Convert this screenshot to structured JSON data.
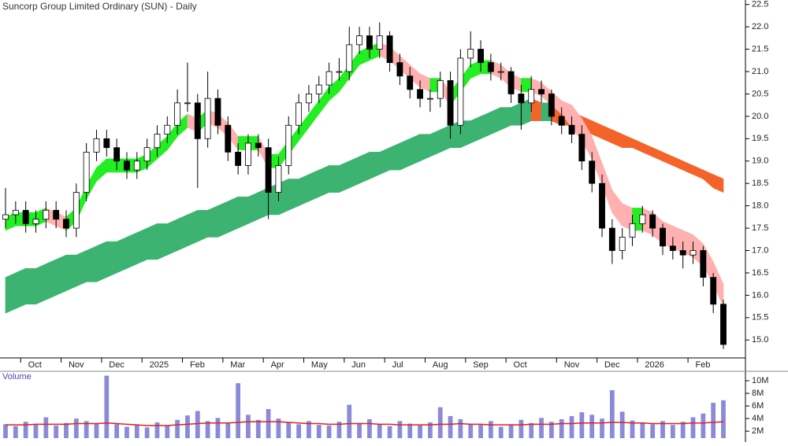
{
  "chart_data": [
    {
      "type": "candlestick",
      "title": "Suncorp Group Limited Ordinary (SUN) - Daily",
      "categories": [
        null,
        null,
        "Oct",
        null,
        null,
        null,
        "Nov",
        null,
        null,
        null,
        "Dec",
        null,
        null,
        null,
        "2025",
        null,
        null,
        null,
        "Feb",
        null,
        null,
        null,
        "Mar",
        null,
        null,
        null,
        "Apr",
        null,
        null,
        null,
        "May",
        null,
        null,
        null,
        "Jun",
        null,
        null,
        null,
        "Jul",
        null,
        null,
        null,
        "Aug",
        null,
        null,
        null,
        "Sep",
        null,
        null,
        null,
        "Oct",
        null,
        null,
        null,
        null,
        "Nov",
        null,
        null,
        null,
        "Dec",
        null,
        null,
        null,
        "2026",
        null,
        null,
        null,
        null,
        "Feb",
        null,
        null,
        null
      ],
      "open": [
        17.7,
        17.8,
        17.9,
        17.6,
        17.7,
        17.9,
        17.7,
        17.5,
        18.3,
        19.2,
        19.5,
        19.3,
        19.0,
        18.8,
        19.0,
        19.3,
        19.6,
        19.8,
        20.3,
        20.3,
        19.5,
        20.4,
        19.8,
        19.2,
        18.9,
        19.4,
        19.3,
        18.3,
        18.9,
        19.8,
        20.3,
        20.5,
        20.7,
        21.0,
        21.0,
        21.6,
        21.8,
        21.5,
        21.8,
        21.2,
        20.9,
        20.6,
        20.4,
        20.4,
        20.8,
        19.8,
        21.3,
        21.5,
        21.2,
        21.0,
        21.0,
        20.5,
        20.3,
        20.6,
        20.5,
        20.0,
        19.8,
        19.6,
        19.0,
        18.5,
        17.5,
        17.0,
        17.3,
        17.6,
        17.8,
        17.5,
        17.1,
        17.0,
        16.9,
        17.0,
        16.4,
        15.8
      ],
      "high": [
        18.4,
        18.1,
        18.1,
        17.9,
        18.1,
        18.1,
        17.9,
        18.5,
        19.4,
        19.7,
        19.7,
        19.5,
        19.2,
        19.2,
        19.5,
        19.8,
        20.0,
        20.6,
        21.2,
        20.5,
        21.0,
        20.6,
        20.0,
        19.4,
        19.6,
        19.6,
        19.5,
        19.1,
        20.0,
        20.5,
        20.7,
        20.9,
        21.2,
        21.3,
        22.0,
        22.0,
        22.0,
        22.1,
        21.9,
        21.4,
        21.1,
        20.8,
        20.6,
        21.0,
        21.0,
        21.5,
        21.9,
        21.7,
        21.4,
        21.2,
        21.1,
        20.7,
        20.9,
        20.8,
        20.6,
        20.2,
        20.0,
        19.8,
        19.2,
        18.7,
        17.7,
        17.5,
        17.8,
        18.0,
        17.9,
        17.6,
        17.3,
        17.2,
        17.2,
        17.1,
        16.5,
        15.9
      ],
      "low": [
        17.5,
        17.6,
        17.4,
        17.4,
        17.5,
        17.5,
        17.3,
        17.3,
        18.1,
        19.0,
        19.1,
        18.8,
        18.6,
        18.6,
        18.8,
        19.1,
        19.4,
        19.6,
        20.1,
        18.4,
        19.3,
        19.6,
        19.0,
        18.7,
        18.7,
        19.1,
        17.7,
        18.1,
        18.7,
        19.6,
        20.1,
        20.3,
        20.5,
        20.8,
        20.8,
        21.4,
        21.3,
        21.3,
        21.0,
        20.7,
        20.4,
        20.2,
        20.1,
        20.2,
        19.5,
        19.6,
        21.1,
        21.0,
        20.8,
        20.8,
        20.3,
        19.7,
        20.1,
        20.3,
        19.8,
        19.6,
        19.4,
        18.8,
        18.3,
        17.3,
        16.7,
        16.8,
        17.1,
        17.4,
        17.3,
        16.9,
        16.8,
        16.6,
        16.7,
        16.2,
        15.6,
        14.8
      ],
      "close": [
        17.8,
        17.9,
        17.6,
        17.7,
        17.9,
        17.7,
        17.5,
        18.3,
        19.2,
        19.5,
        19.3,
        19.0,
        18.8,
        19.0,
        19.3,
        19.6,
        19.8,
        20.3,
        20.3,
        19.5,
        20.4,
        19.8,
        19.2,
        18.9,
        19.4,
        19.3,
        18.3,
        18.9,
        19.8,
        20.3,
        20.5,
        20.7,
        21.0,
        21.0,
        21.6,
        21.8,
        21.5,
        21.8,
        21.2,
        20.9,
        20.6,
        20.4,
        20.4,
        20.8,
        19.8,
        21.3,
        21.5,
        21.2,
        21.0,
        21.0,
        20.5,
        20.3,
        20.6,
        20.5,
        20.0,
        19.8,
        19.6,
        19.0,
        18.5,
        17.5,
        17.0,
        17.3,
        17.6,
        17.8,
        17.5,
        17.1,
        17.0,
        16.9,
        17.0,
        16.4,
        15.8,
        14.9
      ],
      "bands": [
        {
          "upper": [
            16.4,
            16.5,
            16.6,
            16.6,
            16.7,
            16.8,
            16.9,
            16.9,
            17.0,
            17.1,
            17.2,
            17.2,
            17.3,
            17.4,
            17.5,
            17.6,
            17.6,
            17.7,
            17.8,
            17.9,
            17.9,
            18.0,
            18.1,
            18.2,
            18.2,
            18.3,
            18.4,
            18.5,
            18.6,
            18.6,
            18.7,
            18.8,
            18.9,
            18.9,
            19.0,
            19.1,
            19.2,
            19.2,
            19.3,
            19.4,
            19.5,
            19.6,
            19.6,
            19.7,
            19.8,
            19.9,
            19.9,
            20.0,
            20.1,
            20.2,
            20.2,
            20.3,
            20.4,
            20.3,
            20.3,
            20.2,
            20.1,
            20.0,
            19.9,
            19.8,
            19.7,
            19.6,
            19.5,
            19.4,
            19.3,
            19.2,
            19.1,
            19.0,
            18.9,
            18.8,
            18.7,
            18.6
          ],
          "lower": [
            15.6,
            15.7,
            15.8,
            15.8,
            15.9,
            16.0,
            16.1,
            16.2,
            16.3,
            16.3,
            16.4,
            16.5,
            16.6,
            16.7,
            16.8,
            16.8,
            16.9,
            17.0,
            17.1,
            17.2,
            17.3,
            17.3,
            17.4,
            17.5,
            17.6,
            17.7,
            17.8,
            17.8,
            17.9,
            18.0,
            18.1,
            18.2,
            18.3,
            18.3,
            18.4,
            18.5,
            18.6,
            18.7,
            18.8,
            18.8,
            18.9,
            19.0,
            19.1,
            19.2,
            19.3,
            19.3,
            19.4,
            19.5,
            19.6,
            19.7,
            19.8,
            19.8,
            19.9,
            19.9,
            19.9,
            19.8,
            19.8,
            19.7,
            19.6,
            19.5,
            19.4,
            19.3,
            19.3,
            19.2,
            19.1,
            19.0,
            18.9,
            18.8,
            18.7,
            18.6,
            18.4,
            18.3
          ],
          "up_color": "#3cb371",
          "down_color": "#f4642a"
        },
        {
          "upper": [
            17.75,
            17.85,
            17.85,
            17.85,
            17.95,
            17.85,
            17.75,
            17.95,
            18.45,
            18.85,
            19.05,
            19.05,
            19.05,
            19.05,
            19.15,
            19.35,
            19.55,
            19.85,
            20.05,
            19.95,
            20.15,
            20.05,
            19.85,
            19.55,
            19.55,
            19.55,
            19.15,
            19.15,
            19.45,
            19.75,
            20.05,
            20.35,
            20.65,
            20.85,
            21.15,
            21.45,
            21.55,
            21.65,
            21.55,
            21.35,
            21.15,
            20.95,
            20.85,
            20.85,
            20.55,
            20.85,
            21.15,
            21.25,
            21.25,
            21.15,
            20.95,
            20.85,
            20.85,
            20.75,
            20.55,
            20.35,
            20.25,
            19.95,
            19.55,
            18.95,
            18.35,
            18.05,
            17.95,
            17.95,
            17.85,
            17.65,
            17.55,
            17.45,
            17.35,
            17.15,
            16.75,
            16.25
          ],
          "lower": [
            17.45,
            17.55,
            17.55,
            17.55,
            17.65,
            17.55,
            17.45,
            17.65,
            18.15,
            18.55,
            18.75,
            18.75,
            18.75,
            18.75,
            18.85,
            19.05,
            19.25,
            19.55,
            19.75,
            19.65,
            19.85,
            19.75,
            19.55,
            19.25,
            19.25,
            19.25,
            18.85,
            18.85,
            19.15,
            19.45,
            19.75,
            20.05,
            20.35,
            20.55,
            20.85,
            21.15,
            21.25,
            21.35,
            21.25,
            21.05,
            20.85,
            20.65,
            20.55,
            20.55,
            20.25,
            20.55,
            20.85,
            20.95,
            20.95,
            20.85,
            20.65,
            20.55,
            20.55,
            20.45,
            20.25,
            20.05,
            19.75,
            19.45,
            19.05,
            18.45,
            17.85,
            17.55,
            17.45,
            17.45,
            17.35,
            17.15,
            17.05,
            16.95,
            16.85,
            16.65,
            16.25,
            15.75
          ],
          "up_color": "#22ee22",
          "down_color": "#ffb0b0"
        }
      ],
      "up_body_color": "#ffffff",
      "down_body_color": "#000000",
      "wick_color": "#000000",
      "ylim": [
        14.6,
        22.6
      ],
      "yticks": [
        {
          "value": 15,
          "label": "15.0"
        },
        {
          "value": 15.5,
          "label": "15.5"
        },
        {
          "value": 16,
          "label": "16.0"
        },
        {
          "value": 16.5,
          "label": "16.5"
        },
        {
          "value": 17,
          "label": "17.0"
        },
        {
          "value": 17.5,
          "label": "17.5"
        },
        {
          "value": 18,
          "label": "18.0"
        },
        {
          "value": 18.5,
          "label": "18.5"
        },
        {
          "value": 19,
          "label": "19.0"
        },
        {
          "value": 19.5,
          "label": "19.5"
        },
        {
          "value": 20,
          "label": "20.0"
        },
        {
          "value": 20.5,
          "label": "20.5"
        },
        {
          "value": 21,
          "label": "21.0"
        },
        {
          "value": 21.5,
          "label": "21.5"
        },
        {
          "value": 22,
          "label": "22.0"
        },
        {
          "value": 22.5,
          "label": "22.5"
        }
      ]
    },
    {
      "type": "bar",
      "title": "Volume",
      "values": [
        3100000,
        2800000,
        3500000,
        3000000,
        4200000,
        2900000,
        3300000,
        4000000,
        3600000,
        3200000,
        10800000,
        3100000,
        2700000,
        3000000,
        2600000,
        3400000,
        2900000,
        3800000,
        4500000,
        5200000,
        3600000,
        4100000,
        3300000,
        9600000,
        4600000,
        3800000,
        5500000,
        4000000,
        3400000,
        3100000,
        3600000,
        3000000,
        2900000,
        3500000,
        6200000,
        3300000,
        3900000,
        3100000,
        2800000,
        3600000,
        3200000,
        2900000,
        3400000,
        5800000,
        4400000,
        3900000,
        3200000,
        3000000,
        3600000,
        2700000,
        3100000,
        3800000,
        3300000,
        4100000,
        3500000,
        3900000,
        4400000,
        5000000,
        4600000,
        4000000,
        8500000,
        5100000,
        3700000,
        3400000,
        3100000,
        3600000,
        3000000,
        3500000,
        4200000,
        4800000,
        6500000,
        6900000
      ],
      "color": "#8a8ad8",
      "average": {
        "color": "#e02020",
        "values": [
          3000000,
          3000000,
          3000000,
          3100000,
          3100000,
          3100000,
          3100000,
          3200000,
          3200000,
          3200000,
          3300000,
          3200000,
          3100000,
          3000000,
          2900000,
          2900000,
          2900000,
          3000000,
          3100000,
          3200000,
          3300000,
          3300000,
          3300000,
          3400000,
          3500000,
          3500000,
          3500000,
          3500000,
          3400000,
          3300000,
          3200000,
          3200000,
          3100000,
          3100000,
          3200000,
          3200000,
          3200000,
          3100000,
          3100000,
          3000000,
          3000000,
          3000000,
          3000000,
          3100000,
          3100000,
          3200000,
          3100000,
          3100000,
          3000000,
          3000000,
          3000000,
          3000000,
          3100000,
          3100000,
          3100000,
          3200000,
          3200000,
          3300000,
          3300000,
          3300000,
          3400000,
          3400000,
          3300000,
          3300000,
          3200000,
          3200000,
          3200000,
          3200000,
          3300000,
          3300000,
          3400000,
          3500000
        ]
      },
      "ylim": [
        900000,
        11000000
      ],
      "yticks": [
        {
          "value": 2000000,
          "label": "2M"
        },
        {
          "value": 4000000,
          "label": "4M"
        },
        {
          "value": 6000000,
          "label": "6M"
        },
        {
          "value": 8000000,
          "label": "8M"
        },
        {
          "value": 10000000,
          "label": "10M"
        }
      ]
    }
  ]
}
